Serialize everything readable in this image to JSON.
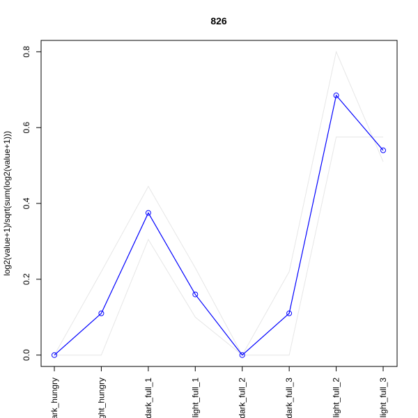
{
  "chart_data": {
    "type": "line",
    "title": "826",
    "xlabel": "",
    "ylabel": "log2(value+1)/sqrt(sum(log2(value+1)))",
    "categories": [
      "dark_hungry",
      "light_hungry",
      "dark_full_1",
      "light_full_1",
      "dark_full_2",
      "dark_full_3",
      "light_full_2",
      "light_full_3"
    ],
    "x_tick_labels": [
      "dark_hungry",
      "light_hungry",
      "dark_full_1",
      "light_full_1",
      "dark_full_2",
      "dark_full_3",
      "light_full_2",
      "light_full_3"
    ],
    "ylim": [
      -0.03,
      0.83
    ],
    "y_ticks": [
      0.0,
      0.2,
      0.4,
      0.6,
      0.8
    ],
    "y_tick_labels": [
      "0.0",
      "0.2",
      "0.4",
      "0.6",
      "0.8"
    ],
    "series": [
      {
        "values": [
          0.0,
          0.11,
          0.375,
          0.16,
          0.0,
          0.11,
          0.685,
          0.54
        ],
        "color": "#0000ff",
        "marker": "open-circle"
      },
      {
        "values": [
          0.0,
          0.22,
          0.445,
          0.23,
          0.0,
          0.22,
          0.8,
          0.51
        ],
        "color": "#e6e6e6"
      },
      {
        "values": [
          0.0,
          0.0,
          0.305,
          0.1,
          0.0,
          0.0,
          0.575,
          0.575
        ],
        "color": "#e6e6e6"
      }
    ],
    "grid": false,
    "legend": "none"
  }
}
